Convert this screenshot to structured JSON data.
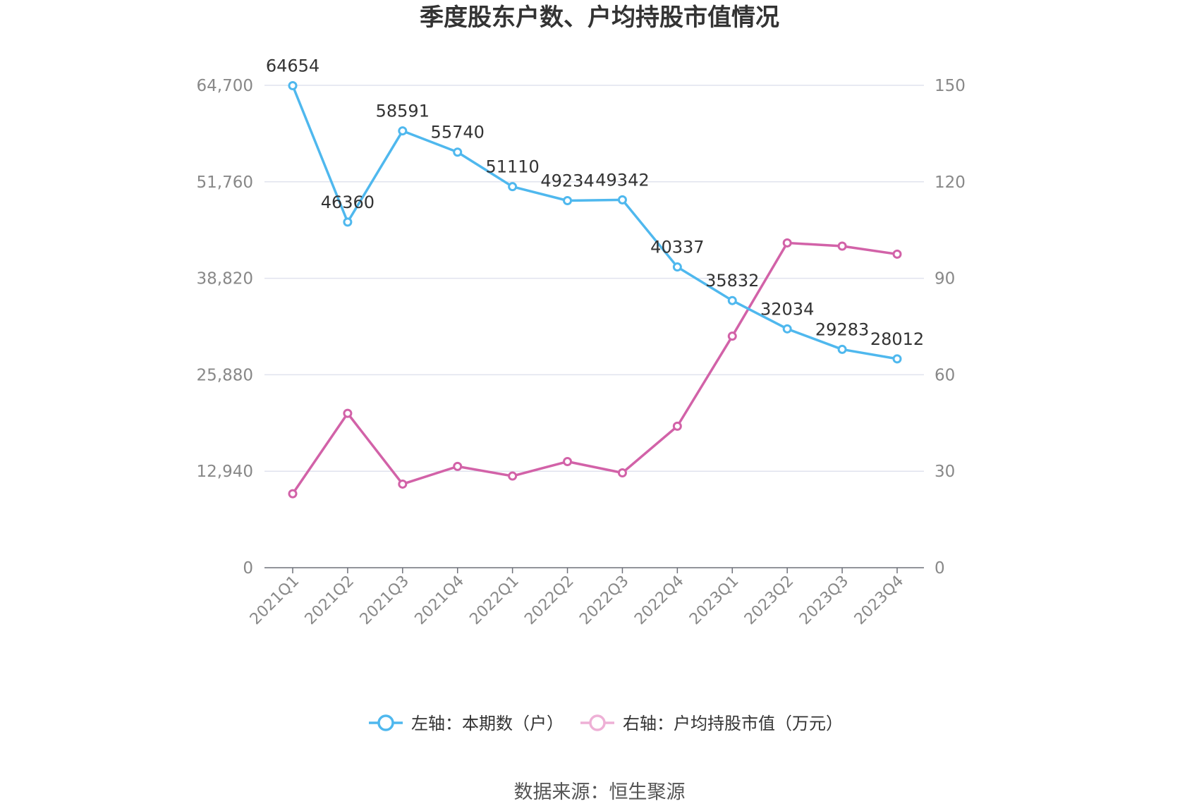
{
  "chart_data": {
    "type": "line",
    "title": "季度股东户数、户均持股市值情况",
    "categories": [
      "2021Q1",
      "2021Q2",
      "2021Q3",
      "2021Q4",
      "2022Q1",
      "2022Q2",
      "2022Q3",
      "2022Q4",
      "2023Q1",
      "2023Q2",
      "2023Q3",
      "2023Q4"
    ],
    "left_axis": {
      "ticks": [
        "0",
        "12,940",
        "25,880",
        "38,820",
        "51,760",
        "64,700"
      ],
      "min": 0,
      "max": 64700
    },
    "right_axis": {
      "ticks": [
        "0",
        "30",
        "60",
        "90",
        "120",
        "150"
      ],
      "min": 0,
      "max": 150
    },
    "series": [
      {
        "name": "左轴：本期数（户）",
        "axis": "left",
        "color": "#4fb8ee",
        "values": [
          64654,
          46360,
          58591,
          55740,
          51110,
          49234,
          49342,
          40337,
          35832,
          32034,
          29283,
          28012
        ],
        "labels": [
          "64654",
          "46360",
          "58591",
          "55740",
          "51110",
          "49234",
          "49342",
          "40337",
          "35832",
          "32034",
          "29283",
          "28012"
        ]
      },
      {
        "name": "右轴：户均持股市值（万元）",
        "axis": "right",
        "color": "#d262a8",
        "values": [
          23,
          48,
          26,
          31.5,
          28.5,
          33,
          29.5,
          44,
          72,
          101,
          100,
          97.5
        ]
      }
    ],
    "grid": true,
    "legend_position": "bottom"
  },
  "source": "数据来源：恒生聚源"
}
